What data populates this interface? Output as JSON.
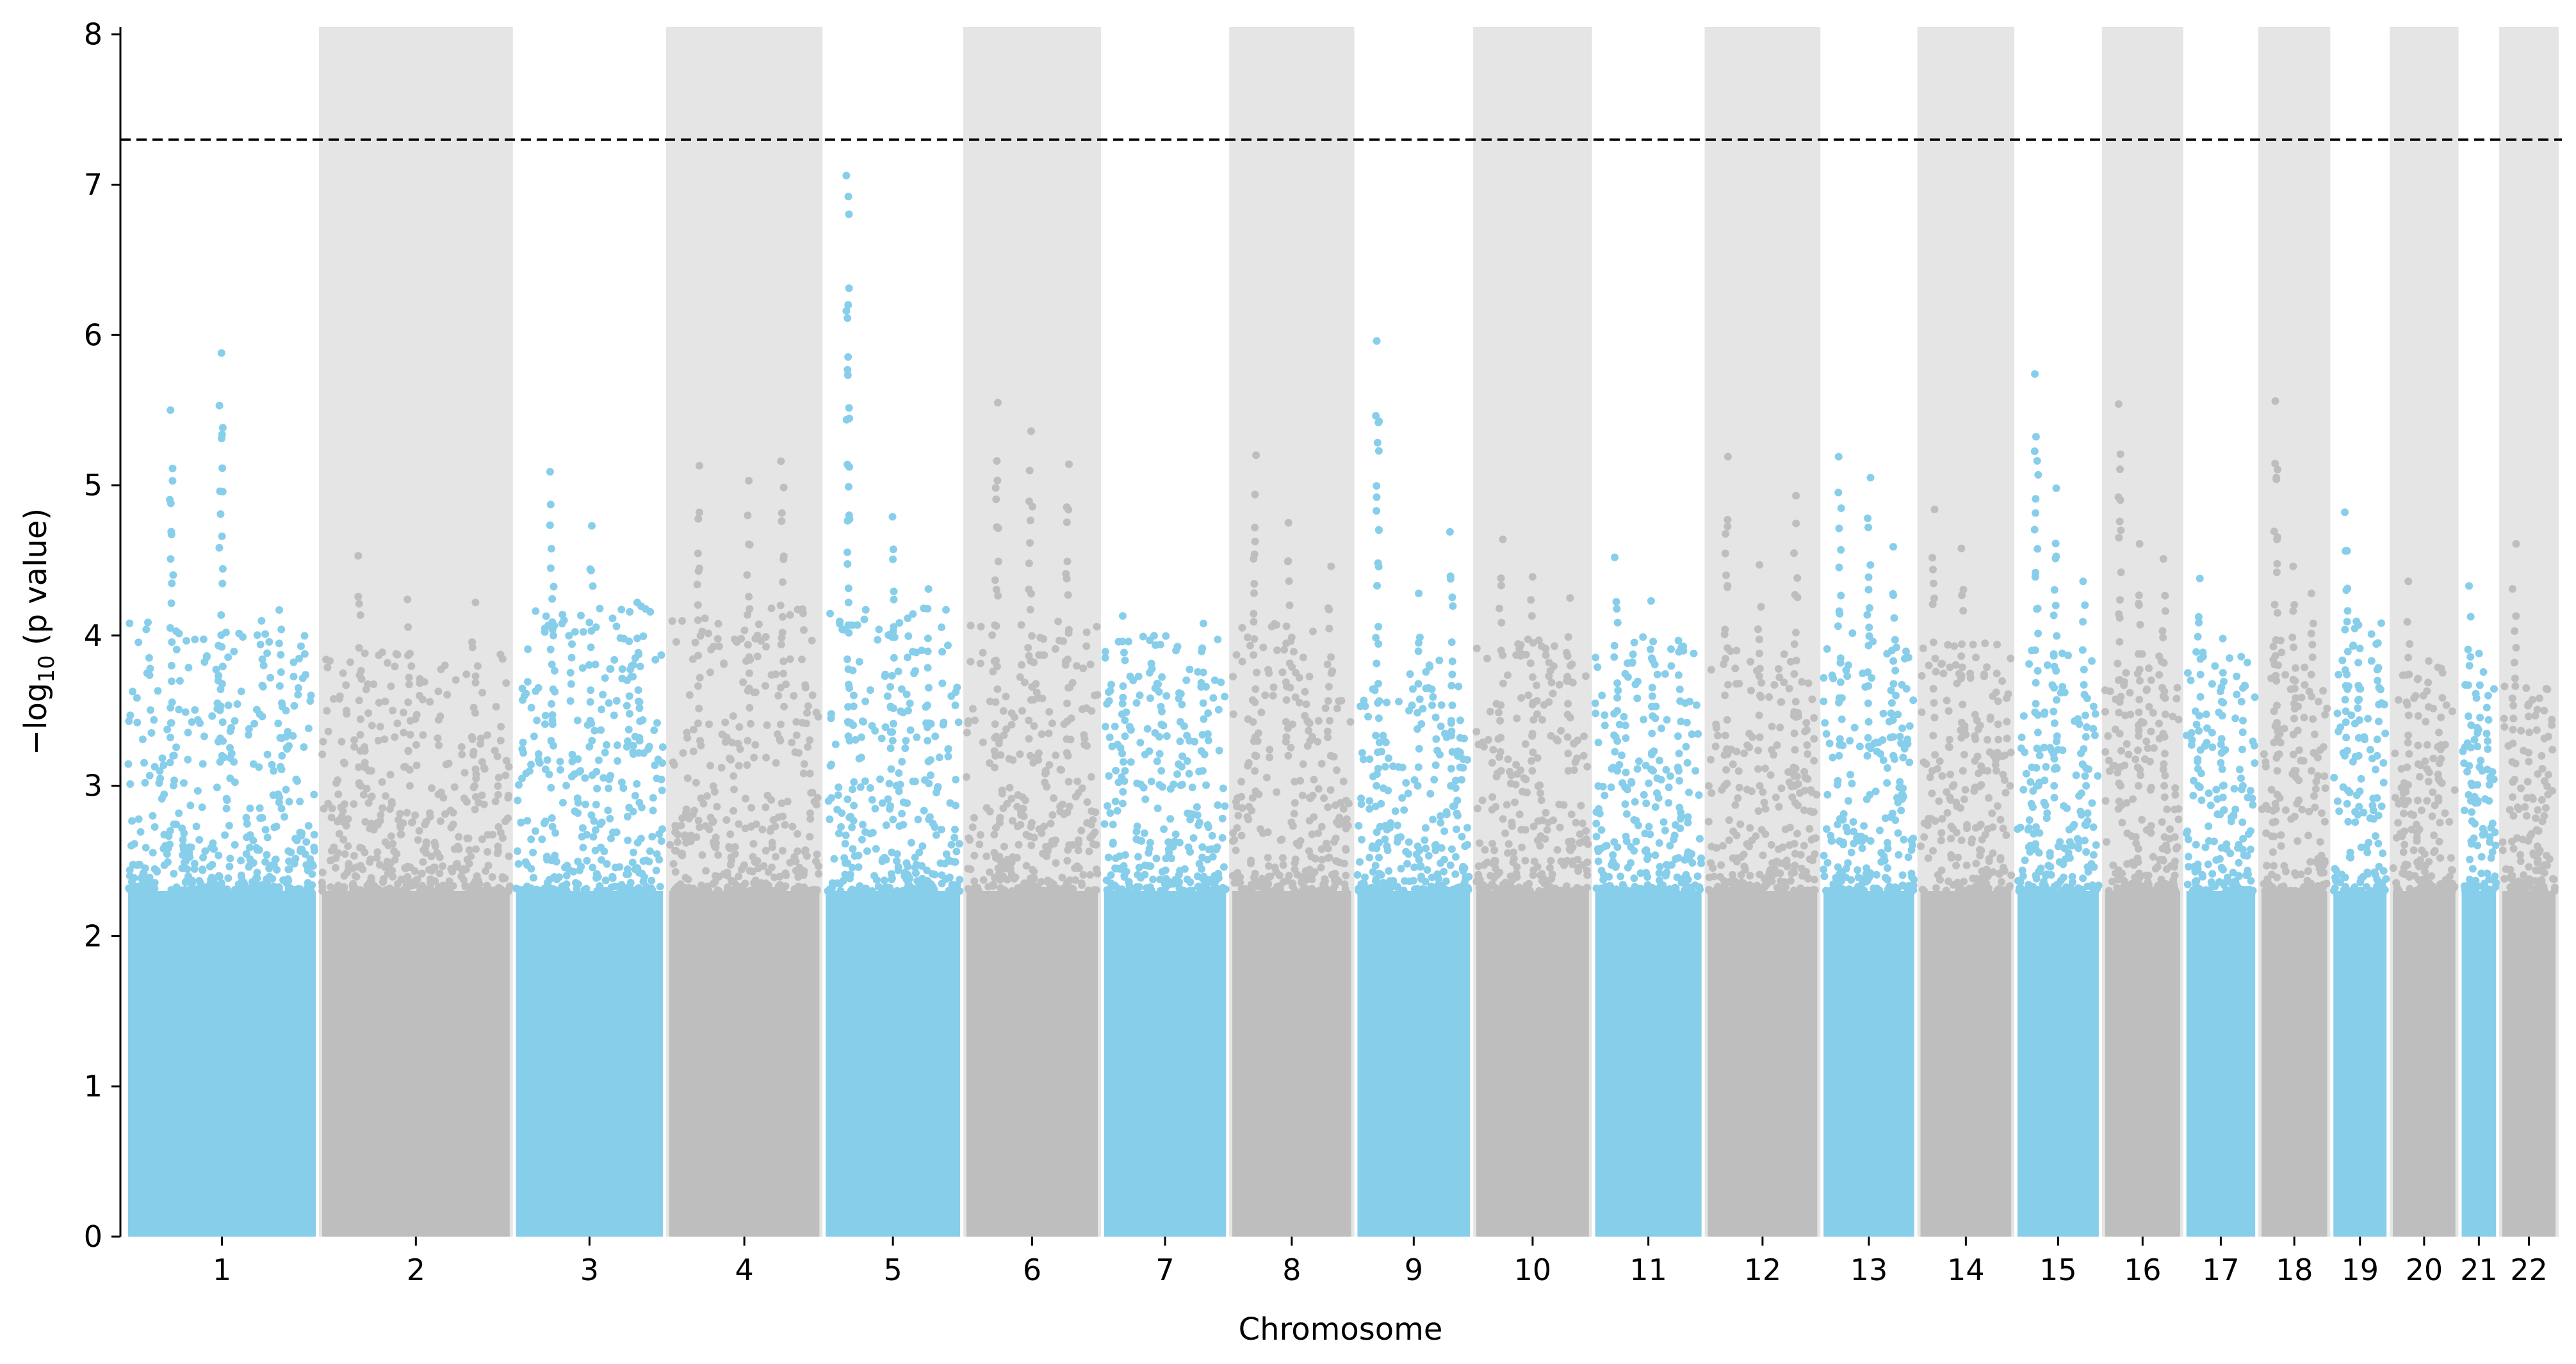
{
  "chart_data": {
    "type": "scatter",
    "subtype": "manhattan",
    "title": "",
    "xlabel": "Chromosome",
    "ylabel_main": "−log",
    "ylabel_sub": "10",
    "ylabel_tail": " (p value)",
    "ylim": [
      0,
      8.05
    ],
    "yticks": [
      0,
      1,
      2,
      3,
      4,
      5,
      6,
      7,
      8
    ],
    "significance_threshold": 7.3,
    "threshold_style": "dashed",
    "grid": false,
    "legend": "none",
    "colors": {
      "odd_chromosomes": "#87ceeb",
      "even_chromosomes": "#bebebe",
      "even_band": "#e5e5e5",
      "threshold_line": "#000000"
    },
    "chromosomes": [
      {
        "label": "1",
        "peaks": [
          5.5,
          5.88,
          4.17
        ],
        "base": 3.2
      },
      {
        "label": "2",
        "peaks": [
          4.53,
          4.24,
          4.22
        ],
        "base": 3.0
      },
      {
        "label": "3",
        "peaks": [
          5.09,
          4.73,
          4.22
        ],
        "base": 3.3
      },
      {
        "label": "4",
        "peaks": [
          5.13,
          5.03,
          5.16
        ],
        "base": 3.3
      },
      {
        "label": "5",
        "peaks": [
          7.06,
          4.79,
          4.31
        ],
        "base": 3.3
      },
      {
        "label": "6",
        "peaks": [
          5.55,
          5.36,
          5.14
        ],
        "base": 3.2
      },
      {
        "label": "7",
        "peaks": [
          4.13,
          3.94,
          4.08
        ],
        "base": 3.1
      },
      {
        "label": "8",
        "peaks": [
          5.2,
          4.75,
          4.46
        ],
        "base": 3.2
      },
      {
        "label": "9",
        "peaks": [
          5.96,
          4.28,
          4.69
        ],
        "base": 3.0
      },
      {
        "label": "10",
        "peaks": [
          4.64,
          4.39,
          4.25
        ],
        "base": 3.1
      },
      {
        "label": "11",
        "peaks": [
          4.52,
          4.23,
          3.92
        ],
        "base": 3.1
      },
      {
        "label": "12",
        "peaks": [
          5.19,
          4.47,
          4.93
        ],
        "base": 3.0
      },
      {
        "label": "13",
        "peaks": [
          5.19,
          5.05,
          4.59
        ],
        "base": 3.2
      },
      {
        "label": "14",
        "peaks": [
          4.84,
          4.58,
          3.94
        ],
        "base": 3.1
      },
      {
        "label": "15",
        "peaks": [
          5.74,
          4.98,
          4.36
        ],
        "base": 3.0
      },
      {
        "label": "16",
        "peaks": [
          5.54,
          4.61,
          4.51
        ],
        "base": 3.0
      },
      {
        "label": "17",
        "peaks": [
          4.38,
          3.98,
          3.86
        ],
        "base": 3.0
      },
      {
        "label": "18",
        "peaks": [
          5.56,
          4.46,
          4.28
        ],
        "base": 3.1
      },
      {
        "label": "19",
        "peaks": [
          4.82,
          4.07,
          3.95
        ],
        "base": 3.2
      },
      {
        "label": "20",
        "peaks": [
          4.36,
          3.83,
          3.78
        ],
        "base": 2.9
      },
      {
        "label": "21",
        "peaks": [
          4.33,
          3.88,
          3.6
        ],
        "base": 2.9
      },
      {
        "label": "22",
        "peaks": [
          4.61,
          3.65,
          3.5
        ],
        "base": 2.8
      }
    ]
  }
}
